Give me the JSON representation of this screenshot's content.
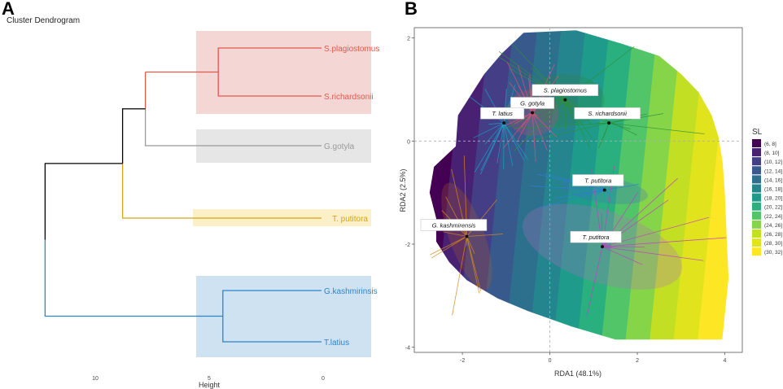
{
  "panelA": {
    "letter": "A",
    "subtitle": "Cluster Dendrogram",
    "xlabel": "Height",
    "ticks": [
      "10",
      "5",
      "0"
    ],
    "leaves": [
      {
        "name": "S.plagiostomus",
        "color": "#e05a4c",
        "box": "#f4d6d5"
      },
      {
        "name": "S.richardsonii",
        "color": "#e05a4c",
        "box": "#f4d6d5"
      },
      {
        "name": "G.gotyla",
        "color": "#999999",
        "box": "#e6e6e6"
      },
      {
        "name": "T. putitora",
        "color": "#d4a418",
        "box": "#fbf0c8"
      },
      {
        "name": "G.kashmirinsis",
        "color": "#2b86c8",
        "box": "#cfe2f2"
      },
      {
        "name": "T.latius",
        "color": "#2b86c8",
        "box": "#cfe2f2"
      }
    ]
  },
  "panelB": {
    "letter": "B",
    "legend_title": "SL",
    "legend": [
      {
        "label": "(6, 8]",
        "color": "#440154"
      },
      {
        "label": "(8, 10]",
        "color": "#482173"
      },
      {
        "label": "(10, 12]",
        "color": "#433e85"
      },
      {
        "label": "(12, 14]",
        "color": "#38598c"
      },
      {
        "label": "(14, 16]",
        "color": "#2d708e"
      },
      {
        "label": "(16, 18]",
        "color": "#25858e"
      },
      {
        "label": "(18, 20]",
        "color": "#1e9b8a"
      },
      {
        "label": "(20, 22]",
        "color": "#2ab07f"
      },
      {
        "label": "(22, 24]",
        "color": "#52c569"
      },
      {
        "label": "(24, 26]",
        "color": "#86d549"
      },
      {
        "label": "(26, 28]",
        "color": "#c2df23"
      },
      {
        "label": "(28, 30]",
        "color": "#e1e41d"
      },
      {
        "label": "(30, 32]",
        "color": "#fde725"
      }
    ]
  },
  "chart_data": [
    {
      "type": "dendrogram",
      "title": "Cluster Dendrogram",
      "xlabel": "Height",
      "xlim": [
        12,
        0
      ],
      "leaves": [
        "S.plagiostomus",
        "S.richardsonii",
        "G.gotyla",
        "T. putitora",
        "G.kashmirinsis",
        "T.latius"
      ],
      "merges": [
        {
          "members": [
            "S.plagiostomus",
            "S.richardsonii"
          ],
          "height": 4.6
        },
        {
          "members": [
            "S.plagiostomus",
            "S.richardsonii",
            "G.gotyla"
          ],
          "height": 7.8
        },
        {
          "members": [
            "G.kashmirinsis",
            "T.latius"
          ],
          "height": 4.4
        },
        {
          "members": [
            "S.plagiostomus",
            "S.richardsonii",
            "G.gotyla",
            "T. putitora"
          ],
          "height": 8.8
        },
        {
          "members": [
            "all"
          ],
          "height": 12.2
        }
      ]
    },
    {
      "type": "scatter",
      "xlabel": "RDA1 (48.1%)",
      "ylabel": "RDA2 (2.5%)",
      "xlim": [
        -3.1,
        4.4
      ],
      "ylim": [
        -4.1,
        2.2
      ],
      "xticks": [
        -2,
        0,
        2,
        4
      ],
      "yticks": [
        -4,
        -2,
        0,
        2
      ],
      "legend_title": "SL",
      "centroids": [
        {
          "label": "S. plagiostomus",
          "x": 0.35,
          "y": 0.8,
          "color": "#2f8f3a"
        },
        {
          "label": "S. richardsonii",
          "x": 1.35,
          "y": 0.35,
          "color": "#2f8f3a"
        },
        {
          "label": "G. gotyla",
          "x": -0.4,
          "y": 0.55,
          "color": "#e0507a"
        },
        {
          "label": "T. latius",
          "x": -1.05,
          "y": 0.35,
          "color": "#1aa0c8"
        },
        {
          "label": "T. putitora",
          "x": 1.25,
          "y": -0.95,
          "color": "#2b7fd4"
        },
        {
          "label": "T. putitora",
          "x": 1.2,
          "y": -2.05,
          "color": "#c040c0"
        },
        {
          "label": "G. kashmirensis",
          "x": -1.9,
          "y": -1.85,
          "color": "#d48a20"
        }
      ]
    }
  ]
}
